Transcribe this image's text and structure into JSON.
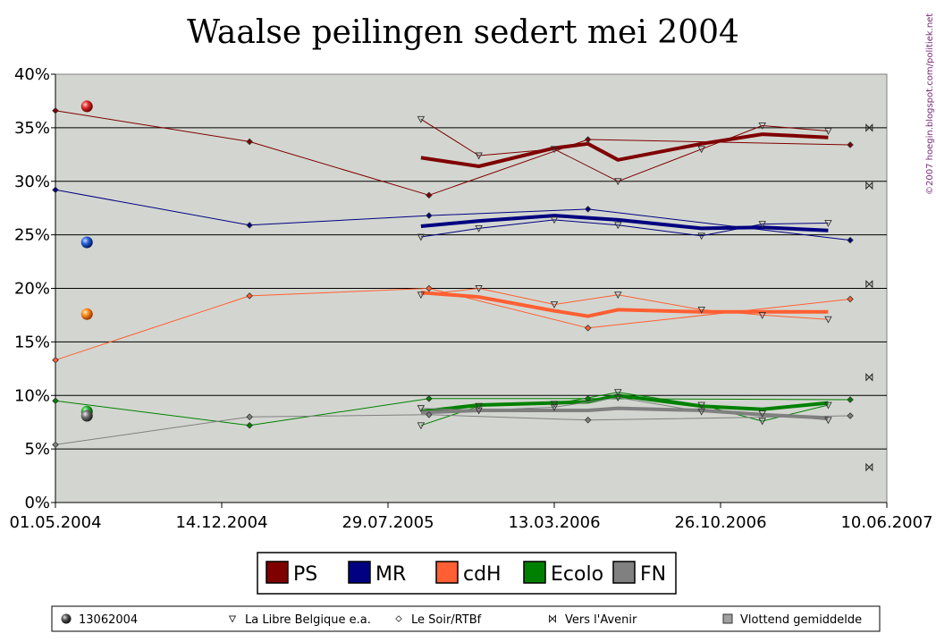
{
  "chart_data": {
    "type": "line",
    "title": "Waalse peilingen sedert mei 2004",
    "credit": "©2007 hoegin.blogspot.com/politiek.net",
    "xlabel": "",
    "ylabel": "",
    "ylim": [
      0,
      40
    ],
    "y_ticks": [
      0,
      5,
      10,
      15,
      20,
      25,
      30,
      35,
      40
    ],
    "y_tick_labels": [
      "0%",
      "5%",
      "10%",
      "15%",
      "20%",
      "25%",
      "30%",
      "35%",
      "40%"
    ],
    "x_ticks": [
      "2004-05-01",
      "2004-12-14",
      "2005-07-29",
      "2006-03-13",
      "2006-10-26",
      "2007-06-10"
    ],
    "x_tick_labels": [
      "01.05.2004",
      "14.12.2004",
      "29.07.2005",
      "13.03.2006",
      "26.10.2006",
      "10.06.2007"
    ],
    "xlim": [
      "2004-05-01",
      "2007-06-10"
    ],
    "grid": "horizontal",
    "legend_position": "bottom",
    "series_colors": {
      "PS": "#7f0000",
      "MR": "#000080",
      "cdH": "#ff5f32",
      "Ecolo": "#008000",
      "FN": "#808080"
    },
    "series": [
      {
        "name": "PS",
        "election_13062004": [
          {
            "x": "2004-06-13",
            "y": 37.0
          }
        ],
        "la_libre": [
          {
            "x": "2005-09-12",
            "y": 35.8
          },
          {
            "x": "2005-11-30",
            "y": 32.4
          },
          {
            "x": "2006-03-13",
            "y": 33.0
          },
          {
            "x": "2006-06-08",
            "y": 30.0
          },
          {
            "x": "2006-09-30",
            "y": 33.0
          },
          {
            "x": "2006-12-22",
            "y": 35.2
          },
          {
            "x": "2007-03-22",
            "y": 34.7
          }
        ],
        "le_soir": [
          {
            "x": "2004-05-01",
            "y": 36.6
          },
          {
            "x": "2005-01-21",
            "y": 33.7
          },
          {
            "x": "2005-09-23",
            "y": 28.7
          },
          {
            "x": "2006-04-28",
            "y": 33.9
          },
          {
            "x": "2007-04-21",
            "y": 33.4
          }
        ],
        "vers_avenir": [
          {
            "x": "2007-05-17",
            "y": 35.0
          }
        ],
        "moving_average": [
          {
            "x": "2005-09-12",
            "y": 32.2
          },
          {
            "x": "2005-11-30",
            "y": 31.4
          },
          {
            "x": "2006-03-13",
            "y": 33.1
          },
          {
            "x": "2006-04-28",
            "y": 33.5
          },
          {
            "x": "2006-06-08",
            "y": 32.0
          },
          {
            "x": "2006-09-30",
            "y": 33.5
          },
          {
            "x": "2006-12-22",
            "y": 34.4
          },
          {
            "x": "2007-03-22",
            "y": 34.1
          }
        ]
      },
      {
        "name": "MR",
        "election_13062004": [
          {
            "x": "2004-06-13",
            "y": 24.3
          }
        ],
        "la_libre": [
          {
            "x": "2005-09-12",
            "y": 24.8
          },
          {
            "x": "2005-11-30",
            "y": 25.6
          },
          {
            "x": "2006-03-13",
            "y": 26.4
          },
          {
            "x": "2006-06-08",
            "y": 25.9
          },
          {
            "x": "2006-09-30",
            "y": 24.9
          },
          {
            "x": "2006-12-22",
            "y": 26.0
          },
          {
            "x": "2007-03-22",
            "y": 26.1
          }
        ],
        "le_soir": [
          {
            "x": "2004-05-01",
            "y": 29.2
          },
          {
            "x": "2005-01-21",
            "y": 25.9
          },
          {
            "x": "2005-09-23",
            "y": 26.8
          },
          {
            "x": "2006-04-28",
            "y": 27.4
          },
          {
            "x": "2007-04-21",
            "y": 24.5
          }
        ],
        "vers_avenir": [
          {
            "x": "2007-05-17",
            "y": 29.6
          }
        ],
        "moving_average": [
          {
            "x": "2005-09-12",
            "y": 25.8
          },
          {
            "x": "2005-11-30",
            "y": 26.3
          },
          {
            "x": "2006-03-13",
            "y": 26.8
          },
          {
            "x": "2006-06-08",
            "y": 26.4
          },
          {
            "x": "2006-09-30",
            "y": 25.6
          },
          {
            "x": "2006-12-22",
            "y": 25.7
          },
          {
            "x": "2007-03-22",
            "y": 25.4
          }
        ]
      },
      {
        "name": "cdH",
        "election_13062004": [
          {
            "x": "2004-06-13",
            "y": 17.6
          }
        ],
        "la_libre": [
          {
            "x": "2005-09-12",
            "y": 19.4
          },
          {
            "x": "2005-11-30",
            "y": 20.0
          },
          {
            "x": "2006-03-13",
            "y": 18.5
          },
          {
            "x": "2006-06-08",
            "y": 19.4
          },
          {
            "x": "2006-09-30",
            "y": 18.0
          },
          {
            "x": "2006-12-22",
            "y": 17.5
          },
          {
            "x": "2007-03-22",
            "y": 17.1
          }
        ],
        "le_soir": [
          {
            "x": "2004-05-01",
            "y": 13.3
          },
          {
            "x": "2005-01-21",
            "y": 19.3
          },
          {
            "x": "2005-09-23",
            "y": 20.0
          },
          {
            "x": "2006-04-28",
            "y": 16.3
          },
          {
            "x": "2007-04-21",
            "y": 19.0
          }
        ],
        "vers_avenir": [
          {
            "x": "2007-05-17",
            "y": 20.4
          }
        ],
        "moving_average": [
          {
            "x": "2005-09-12",
            "y": 19.6
          },
          {
            "x": "2005-11-30",
            "y": 19.2
          },
          {
            "x": "2006-03-13",
            "y": 17.9
          },
          {
            "x": "2006-04-28",
            "y": 17.4
          },
          {
            "x": "2006-06-08",
            "y": 18.0
          },
          {
            "x": "2006-09-30",
            "y": 17.8
          },
          {
            "x": "2006-12-22",
            "y": 17.8
          },
          {
            "x": "2007-03-22",
            "y": 17.8
          }
        ]
      },
      {
        "name": "Ecolo",
        "election_13062004": [
          {
            "x": "2004-06-13",
            "y": 8.5
          }
        ],
        "la_libre": [
          {
            "x": "2005-09-12",
            "y": 7.2
          },
          {
            "x": "2005-11-30",
            "y": 9.0
          },
          {
            "x": "2006-03-13",
            "y": 9.2
          },
          {
            "x": "2006-06-08",
            "y": 10.3
          },
          {
            "x": "2006-09-30",
            "y": 9.1
          },
          {
            "x": "2006-12-22",
            "y": 7.6
          },
          {
            "x": "2007-03-22",
            "y": 9.1
          }
        ],
        "le_soir": [
          {
            "x": "2004-05-01",
            "y": 9.5
          },
          {
            "x": "2005-01-21",
            "y": 7.2
          },
          {
            "x": "2005-09-23",
            "y": 9.7
          },
          {
            "x": "2006-04-28",
            "y": 9.7
          },
          {
            "x": "2007-04-21",
            "y": 9.6
          }
        ],
        "vers_avenir": [
          {
            "x": "2007-05-17",
            "y": 11.7
          }
        ],
        "moving_average": [
          {
            "x": "2005-09-12",
            "y": 8.5
          },
          {
            "x": "2005-11-30",
            "y": 9.1
          },
          {
            "x": "2006-03-13",
            "y": 9.3
          },
          {
            "x": "2006-04-28",
            "y": 9.4
          },
          {
            "x": "2006-06-08",
            "y": 10.0
          },
          {
            "x": "2006-09-30",
            "y": 9.0
          },
          {
            "x": "2006-12-22",
            "y": 8.7
          },
          {
            "x": "2007-03-22",
            "y": 9.3
          }
        ]
      },
      {
        "name": "FN",
        "election_13062004": [
          {
            "x": "2004-06-13",
            "y": 8.1
          }
        ],
        "la_libre": [
          {
            "x": "2005-09-12",
            "y": 8.8
          },
          {
            "x": "2005-11-30",
            "y": 8.6
          },
          {
            "x": "2006-03-13",
            "y": 8.9
          },
          {
            "x": "2006-06-08",
            "y": 9.8
          },
          {
            "x": "2006-09-30",
            "y": 8.5
          },
          {
            "x": "2006-12-22",
            "y": 8.3
          },
          {
            "x": "2007-03-22",
            "y": 7.7
          }
        ],
        "le_soir": [
          {
            "x": "2004-05-01",
            "y": 5.4
          },
          {
            "x": "2005-01-21",
            "y": 8.0
          },
          {
            "x": "2005-09-23",
            "y": 8.2
          },
          {
            "x": "2006-04-28",
            "y": 7.7
          },
          {
            "x": "2007-04-21",
            "y": 8.1
          }
        ],
        "vers_avenir": [
          {
            "x": "2007-05-17",
            "y": 3.3
          }
        ],
        "moving_average": [
          {
            "x": "2005-09-12",
            "y": 8.4
          },
          {
            "x": "2005-11-30",
            "y": 8.6
          },
          {
            "x": "2006-03-13",
            "y": 8.6
          },
          {
            "x": "2006-04-28",
            "y": 8.6
          },
          {
            "x": "2006-06-08",
            "y": 8.8
          },
          {
            "x": "2006-09-30",
            "y": 8.6
          },
          {
            "x": "2006-12-22",
            "y": 8.2
          },
          {
            "x": "2007-03-22",
            "y": 7.9
          }
        ]
      }
    ],
    "legend_parties": [
      "PS",
      "MR",
      "cdH",
      "Ecolo",
      "FN"
    ],
    "legend_sources": [
      {
        "key": "election_13062004",
        "label": "13062004",
        "symbol": "sphere"
      },
      {
        "key": "la_libre",
        "label": "La Libre Belgique e.a.",
        "symbol": "triangle-down"
      },
      {
        "key": "le_soir",
        "label": "Le Soir/RTBf",
        "symbol": "diamond"
      },
      {
        "key": "vers_avenir",
        "label": "Vers l'Avenir",
        "symbol": "bowtie"
      },
      {
        "key": "moving_average",
        "label": "Vlottend gemiddelde",
        "symbol": "square"
      }
    ]
  }
}
